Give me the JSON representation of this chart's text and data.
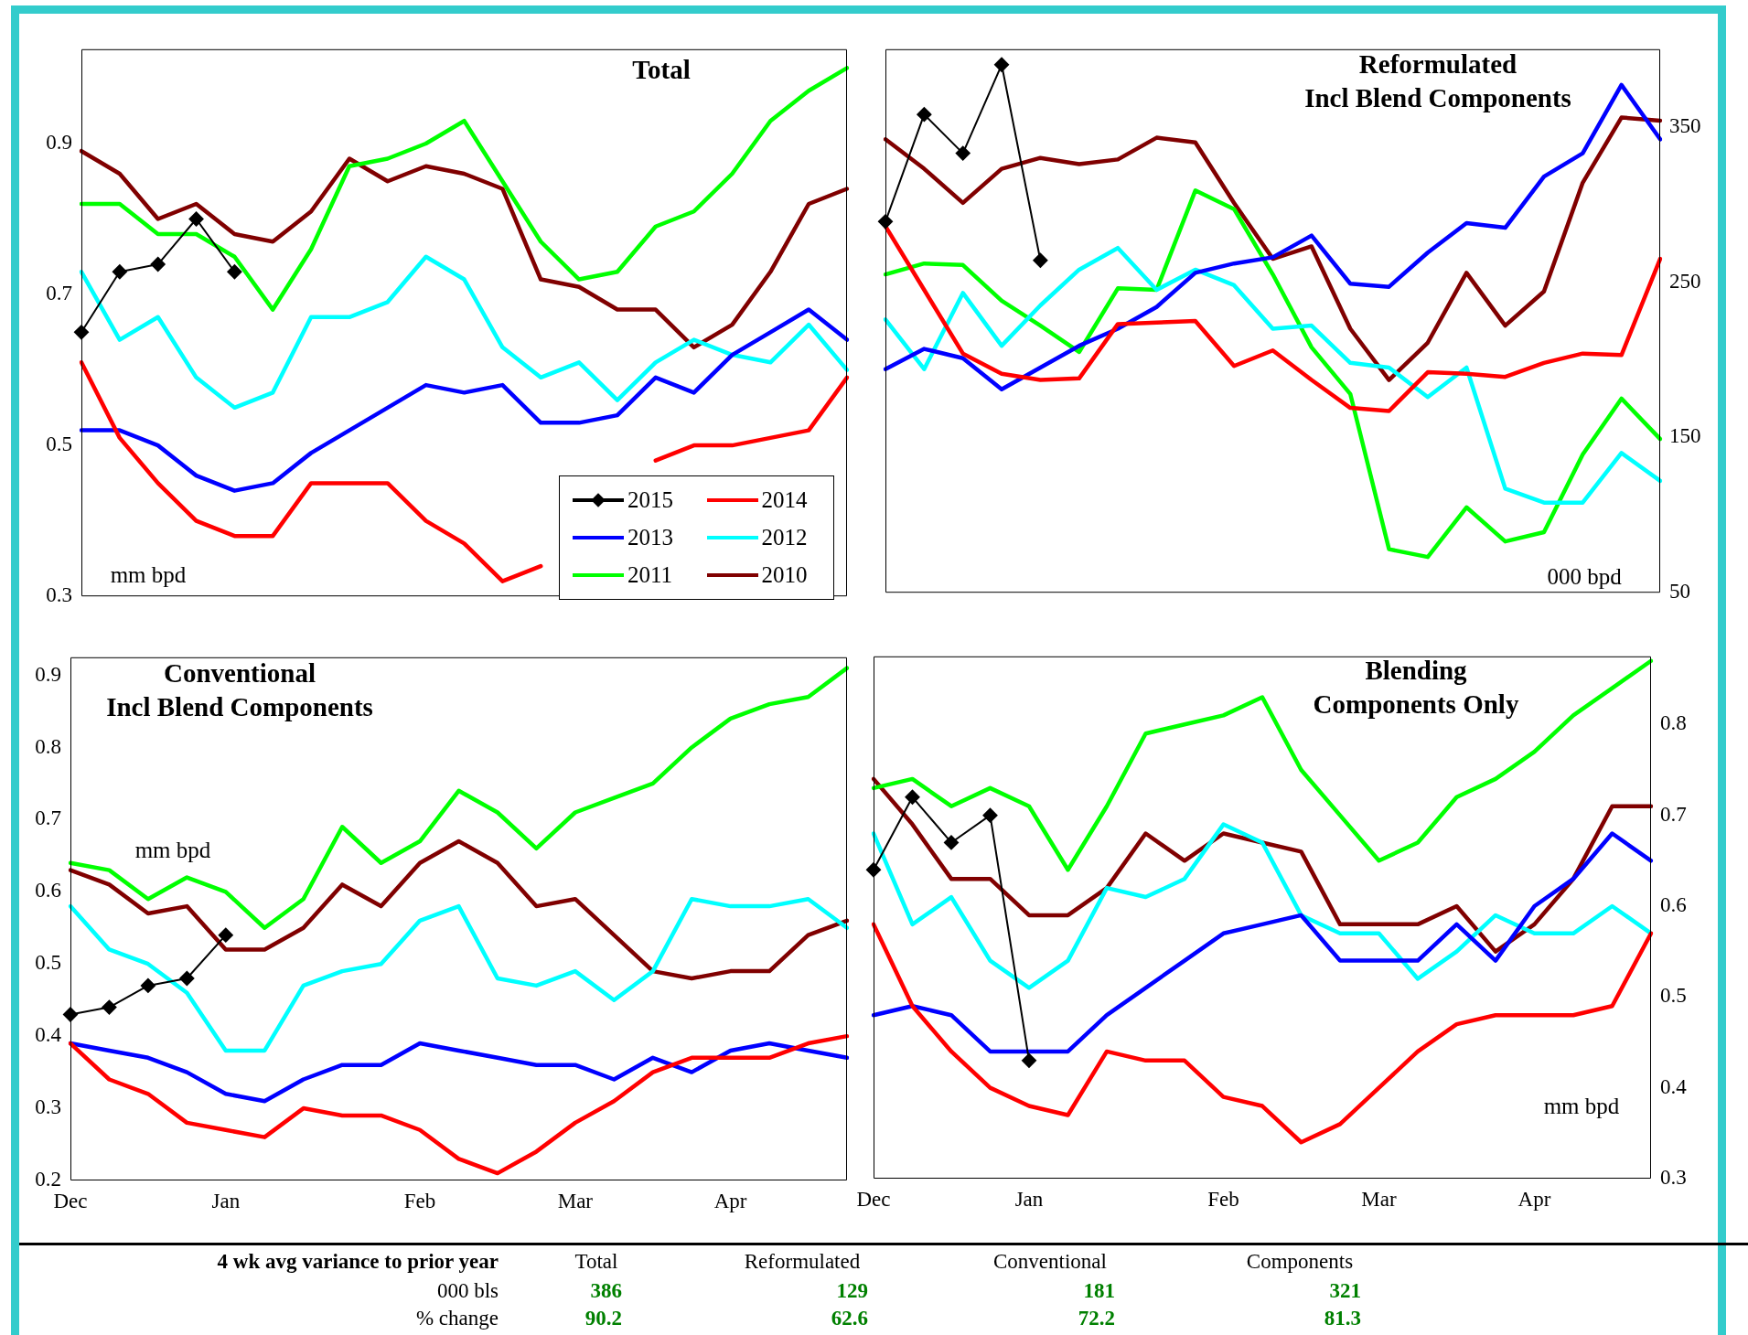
{
  "chart_data": [
    {
      "type": "line",
      "title": "Total",
      "ylabel": "mm bpd",
      "categories": [
        null,
        null,
        null,
        null,
        null,
        null,
        null,
        null,
        null,
        null,
        null,
        null,
        null,
        null,
        null,
        null,
        null,
        null,
        null,
        null,
        null
      ],
      "ylim": [
        0.3,
        1.025
      ],
      "yticks": [
        0.3,
        0.5,
        0.7,
        0.9
      ],
      "grid": false,
      "legend": "bottom right",
      "marker": "none",
      "line_style": "solid",
      "series": [
        {
          "name": "2015",
          "color": "#000000",
          "marker": "diamond",
          "values": [
            0.65,
            0.73,
            0.74,
            0.8,
            0.73,
            null,
            null,
            null,
            null,
            null,
            null,
            null,
            null,
            null,
            null,
            null,
            null,
            null,
            null,
            null,
            null
          ]
        },
        {
          "name": "2014",
          "color": "#ff0000",
          "values": [
            0.61,
            0.51,
            0.45,
            0.4,
            0.38,
            0.38,
            0.45,
            0.45,
            0.45,
            0.4,
            0.37,
            0.32,
            0.34,
            null,
            null,
            0.48,
            0.5,
            0.5,
            0.51,
            0.52,
            0.59
          ]
        },
        {
          "name": "2013",
          "color": "#0000ff",
          "values": [
            0.52,
            0.52,
            0.5,
            0.46,
            0.44,
            0.45,
            0.49,
            0.52,
            0.55,
            0.58,
            0.57,
            0.58,
            0.53,
            0.53,
            0.54,
            0.59,
            0.57,
            0.62,
            0.65,
            0.68,
            0.64
          ]
        },
        {
          "name": "2012",
          "color": "#00ffff",
          "values": [
            0.73,
            0.64,
            0.67,
            0.59,
            0.55,
            0.57,
            0.67,
            0.67,
            0.69,
            0.75,
            0.72,
            0.63,
            0.59,
            0.61,
            0.56,
            0.61,
            0.64,
            0.62,
            0.61,
            0.66,
            0.6
          ]
        },
        {
          "name": "2011",
          "color": "#00ff00",
          "values": [
            0.82,
            0.82,
            0.78,
            0.78,
            0.75,
            0.68,
            0.76,
            0.87,
            0.88,
            0.9,
            0.93,
            0.85,
            0.77,
            0.72,
            0.73,
            0.79,
            0.81,
            0.86,
            0.93,
            0.97,
            1.0
          ]
        },
        {
          "name": "2010",
          "color": "#800000",
          "values": [
            0.89,
            0.86,
            0.8,
            0.82,
            0.78,
            0.77,
            0.81,
            0.88,
            0.85,
            0.87,
            0.86,
            0.84,
            0.72,
            0.71,
            0.68,
            0.68,
            0.63,
            0.66,
            0.73,
            0.82,
            0.84
          ]
        }
      ]
    },
    {
      "type": "line",
      "title": "Reformulated\nIncl Blend Components",
      "ylabel": "000 bpd",
      "categories": [
        null,
        null,
        null,
        null,
        null,
        null,
        null,
        null,
        null,
        null,
        null,
        null,
        null,
        null,
        null,
        null,
        null,
        null,
        null,
        null,
        null
      ],
      "ylim": [
        50,
        400
      ],
      "yticks": [
        50,
        150,
        250,
        350
      ],
      "grid": false,
      "legend": false,
      "marker": "none",
      "line_style": "solid",
      "series": [
        {
          "color": "#000000",
          "marker": "diamond",
          "values": [
            289,
            358,
            333,
            390,
            264,
            null,
            null,
            null,
            null,
            null,
            null,
            null,
            null,
            null,
            null,
            null,
            null,
            null,
            null,
            null,
            null
          ]
        },
        {
          "color": "#ff0000",
          "values": [
            286,
            245,
            204,
            191,
            187,
            188,
            223,
            224,
            225,
            196,
            206,
            187,
            169,
            167,
            192,
            191,
            189,
            198,
            204,
            203,
            265
          ]
        },
        {
          "color": "#0000ff",
          "values": [
            194,
            207,
            201,
            181,
            195,
            209,
            220,
            234,
            256,
            262,
            266,
            280,
            249,
            247,
            269,
            288,
            285,
            318,
            333,
            377,
            342
          ]
        },
        {
          "color": "#00ffff",
          "values": [
            226,
            194,
            243,
            209,
            235,
            258,
            272,
            245,
            258,
            248,
            220,
            222,
            198,
            195,
            176,
            195,
            117,
            108,
            108,
            140,
            122
          ]
        },
        {
          "color": "#00ff00",
          "values": [
            255,
            262,
            261,
            238,
            222,
            205,
            246,
            245,
            309,
            297,
            255,
            208,
            178,
            78,
            73,
            105,
            83,
            89,
            139,
            175,
            149
          ]
        },
        {
          "color": "#800000",
          "values": [
            342,
            323,
            301,
            323,
            330,
            326,
            329,
            343,
            340,
            301,
            265,
            273,
            220,
            187,
            211,
            256,
            222,
            244,
            314,
            356,
            354
          ]
        }
      ]
    },
    {
      "type": "line",
      "title": "Conventional\nIncl Blend Components",
      "ylabel": "mm bpd",
      "categories": [
        "Dec",
        null,
        null,
        null,
        "Jan",
        null,
        null,
        null,
        null,
        "Feb",
        null,
        null,
        null,
        "Mar",
        null,
        null,
        null,
        "Apr",
        null,
        null,
        null
      ],
      "ylim": [
        0.2,
        0.925
      ],
      "yticks": [
        0.2,
        0.3,
        0.4,
        0.5,
        0.6,
        0.7,
        0.8,
        0.9
      ],
      "grid": false,
      "legend": false,
      "marker": "none",
      "line_style": "solid",
      "series": [
        {
          "color": "#000000",
          "marker": "diamond",
          "values": [
            0.43,
            0.44,
            0.47,
            0.48,
            0.54,
            null,
            null,
            null,
            null,
            null,
            null,
            null,
            null,
            null,
            null,
            null,
            null,
            null,
            null,
            null,
            null
          ]
        },
        {
          "color": "#ff0000",
          "values": [
            0.39,
            0.34,
            0.32,
            0.28,
            0.27,
            0.26,
            0.3,
            0.29,
            0.29,
            0.27,
            0.23,
            0.21,
            0.24,
            0.28,
            0.31,
            0.35,
            0.37,
            0.37,
            0.37,
            0.39,
            0.4
          ]
        },
        {
          "color": "#0000ff",
          "values": [
            0.39,
            0.38,
            0.37,
            0.35,
            0.32,
            0.31,
            0.34,
            0.36,
            0.36,
            0.39,
            0.38,
            0.37,
            0.36,
            0.36,
            0.34,
            0.37,
            0.35,
            0.38,
            0.39,
            0.38,
            0.37
          ]
        },
        {
          "color": "#00ffff",
          "values": [
            0.58,
            0.52,
            0.5,
            0.46,
            0.38,
            0.38,
            0.47,
            0.49,
            0.5,
            0.56,
            0.58,
            0.48,
            0.47,
            0.49,
            0.45,
            0.49,
            0.59,
            0.58,
            0.58,
            0.59,
            0.55
          ]
        },
        {
          "color": "#00ff00",
          "values": [
            0.64,
            0.63,
            0.59,
            0.62,
            0.6,
            0.55,
            0.59,
            0.69,
            0.64,
            0.67,
            0.74,
            0.71,
            0.66,
            0.71,
            0.73,
            0.75,
            0.8,
            0.84,
            0.86,
            0.87,
            0.91
          ]
        },
        {
          "color": "#800000",
          "values": [
            0.63,
            0.61,
            0.57,
            0.58,
            0.52,
            0.52,
            0.55,
            0.61,
            0.58,
            0.64,
            0.67,
            0.64,
            0.58,
            0.59,
            0.54,
            0.49,
            0.48,
            0.49,
            0.49,
            0.54,
            0.56
          ]
        }
      ]
    },
    {
      "type": "line",
      "title": "Blending\nComponents Only",
      "y2label": "mm bpd",
      "categories": [
        "Dec",
        null,
        null,
        null,
        "Jan",
        null,
        null,
        null,
        null,
        "Feb",
        null,
        null,
        null,
        "Mar",
        null,
        null,
        null,
        "Apr",
        null,
        null,
        null
      ],
      "y2lim": [
        0.3,
        0.875
      ],
      "y2ticks": [
        0.3,
        0.4,
        0.5,
        0.6,
        0.7,
        0.8
      ],
      "grid": false,
      "legend": false,
      "marker": "none",
      "line_style": "solid",
      "series": [
        {
          "color": "#000000",
          "marker": "diamond",
          "axis": "y2",
          "values": [
            0.64,
            0.72,
            0.67,
            0.7,
            0.43,
            null,
            null,
            null,
            null,
            null,
            null,
            null,
            null,
            null,
            null,
            null,
            null,
            null,
            null,
            null,
            null
          ]
        },
        {
          "color": "#ff0000",
          "axis": "y2",
          "values": [
            0.58,
            0.49,
            0.44,
            0.4,
            0.38,
            0.37,
            0.44,
            0.43,
            0.43,
            0.39,
            0.38,
            0.34,
            0.36,
            0.4,
            0.44,
            0.47,
            0.48,
            0.48,
            0.48,
            0.49,
            0.57
          ]
        },
        {
          "color": "#0000ff",
          "axis": "y2",
          "values": [
            0.48,
            0.49,
            0.48,
            0.44,
            0.44,
            0.44,
            0.48,
            0.51,
            0.54,
            0.57,
            0.58,
            0.59,
            0.54,
            0.54,
            0.54,
            0.58,
            0.54,
            0.6,
            0.63,
            0.68,
            0.65
          ]
        },
        {
          "color": "#00ffff",
          "axis": "y2",
          "values": [
            0.68,
            0.58,
            0.61,
            0.54,
            0.51,
            0.54,
            0.62,
            0.61,
            0.63,
            0.69,
            0.67,
            0.59,
            0.57,
            0.57,
            0.52,
            0.55,
            0.59,
            0.57,
            0.57,
            0.6,
            0.57
          ]
        },
        {
          "color": "#00ff00",
          "axis": "y2",
          "values": [
            0.73,
            0.74,
            0.71,
            0.73,
            0.71,
            0.64,
            0.71,
            0.79,
            0.8,
            0.81,
            0.83,
            0.75,
            0.7,
            0.65,
            0.67,
            0.72,
            0.74,
            0.77,
            0.81,
            0.84,
            0.87
          ]
        },
        {
          "color": "#800000",
          "axis": "y2",
          "values": [
            0.74,
            0.69,
            0.63,
            0.63,
            0.59,
            0.59,
            0.62,
            0.68,
            0.65,
            0.68,
            0.67,
            0.66,
            0.58,
            0.58,
            0.58,
            0.6,
            0.55,
            0.58,
            0.63,
            0.71,
            0.71
          ]
        }
      ]
    },
    {
      "type": "other",
      "title": "4 wk avg variance to prior year",
      "categories": [
        "Total",
        "Reformulated",
        "Conventional",
        "Components"
      ],
      "data_labels": true,
      "series": [
        {
          "name": "000 bls",
          "values": [
            386,
            129,
            181,
            321
          ]
        },
        {
          "name": "% change",
          "values": [
            90.2,
            62.6,
            72.2,
            81.3
          ]
        }
      ]
    }
  ]
}
